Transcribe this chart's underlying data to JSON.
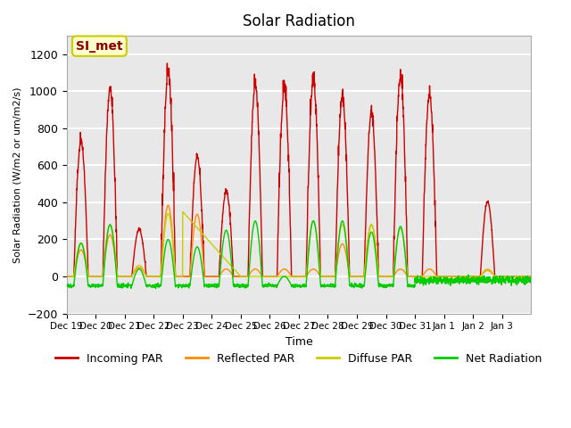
{
  "title": "Solar Radiation",
  "ylabel": "Solar Radiation (W/m2 or um/m2/s)",
  "xlabel": "Time",
  "ylim": [
    -200,
    1300
  ],
  "yticks": [
    -200,
    0,
    200,
    400,
    600,
    800,
    1000,
    1200
  ],
  "background_color": "#ffffff",
  "plot_bg_color": "#e8e8e8",
  "grid_color": "#ffffff",
  "legend_entries": [
    "Incoming PAR",
    "Reflected PAR",
    "Diffuse PAR",
    "Net Radiation"
  ],
  "legend_colors": [
    "#cc0000",
    "#ff8c00",
    "#cccc00",
    "#00cc00"
  ],
  "annotation_text": "SI_met",
  "annotation_color": "#8b0000",
  "annotation_bg": "#ffffcc",
  "annotation_border": "#cccc00",
  "xticklabels": [
    "Dec 19",
    "Dec 20",
    "Dec 21",
    "Dec 22",
    "Dec 23",
    "Dec 24",
    "Dec 25",
    "Dec 26",
    "Dec 27",
    "Dec 28",
    "Dec 29",
    "Dec 30",
    "Dec 31",
    "Jan 1",
    "Jan 2",
    "Jan 3"
  ],
  "n_days": 16,
  "colors": {
    "incoming": "#cc0000",
    "reflected": "#ff8c00",
    "diffuse": "#cccc00",
    "net": "#00cc00"
  }
}
